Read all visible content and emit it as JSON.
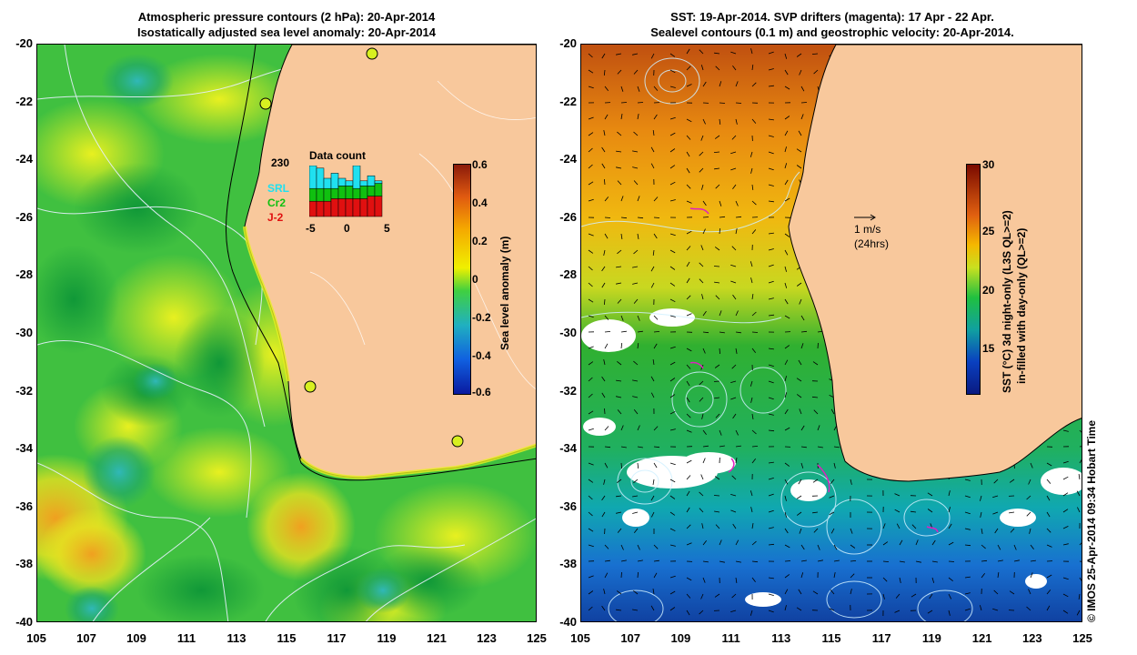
{
  "left_panel": {
    "title_line1": "Atmospheric pressure contours (2 hPa): 20-Apr-2014",
    "title_line2": "Isostatically adjusted sea level anomaly: 20-Apr-2014",
    "colorbar": {
      "label": "Sea level anomaly (m)",
      "ticks": [
        "0.6",
        "0.4",
        "0.2",
        "0",
        "-0.2",
        "-0.4",
        "-0.6"
      ],
      "colors": [
        "#8b1a0a",
        "#e05a10",
        "#f5a800",
        "#f0f000",
        "#40d040",
        "#20b0c0",
        "#1060e0",
        "#0a1aa0"
      ]
    },
    "inset": {
      "title": "Data count",
      "max_label": "230",
      "legend": [
        {
          "name": "SRL",
          "color": "#20e0f0"
        },
        {
          "name": "Cr2",
          "color": "#10c010"
        },
        {
          "name": "J-2",
          "color": "#e01010"
        }
      ],
      "xticks": [
        "-5",
        "0",
        "5"
      ],
      "bars": [
        {
          "srl": 0.45,
          "cr2": 0.25,
          "j2": 0.3
        },
        {
          "srl": 0.4,
          "cr2": 0.25,
          "j2": 0.3
        },
        {
          "srl": 0.2,
          "cr2": 0.25,
          "j2": 0.3
        },
        {
          "srl": 0.3,
          "cr2": 0.2,
          "j2": 0.35
        },
        {
          "srl": 0.15,
          "cr2": 0.25,
          "j2": 0.35
        },
        {
          "srl": 0.1,
          "cr2": 0.25,
          "j2": 0.35
        },
        {
          "srl": 0.45,
          "cr2": 0.2,
          "j2": 0.35
        },
        {
          "srl": 0.1,
          "cr2": 0.25,
          "j2": 0.35
        },
        {
          "srl": 0.2,
          "cr2": 0.2,
          "j2": 0.4
        },
        {
          "srl": 0.05,
          "cr2": 0.25,
          "j2": 0.4
        }
      ]
    }
  },
  "right_panel": {
    "title_line1": "SST: 19-Apr-2014. SVP drifters (magenta): 17 Apr - 22 Apr.",
    "title_line2": "Sealevel contours (0.1 m) and geostrophic velocity: 20-Apr-2014.",
    "colorbar": {
      "label_line1": "SST (°C)  3d night-only (L3S QL>=2)",
      "label_line2": "in-filled with day-only (QL>=2)",
      "ticks": [
        "30",
        "25",
        "20",
        "15"
      ],
      "colors": [
        "#7a0a00",
        "#e06010",
        "#f5b800",
        "#c8e020",
        "#20c040",
        "#10a0a0",
        "#0a40c0",
        "#0a1a80"
      ]
    },
    "arrow_label": "1 m/s",
    "arrow_sub": "(24hrs)"
  },
  "axes": {
    "lat_ticks": [
      "-20",
      "-22",
      "-24",
      "-26",
      "-28",
      "-30",
      "-32",
      "-34",
      "-36",
      "-38",
      "-40"
    ],
    "lon_ticks": [
      "105",
      "107",
      "109",
      "111",
      "113",
      "115",
      "117",
      "119",
      "121",
      "123",
      "125"
    ]
  },
  "credit": "© IMOS 25-Apr-2014 09:34 Hobart Time"
}
